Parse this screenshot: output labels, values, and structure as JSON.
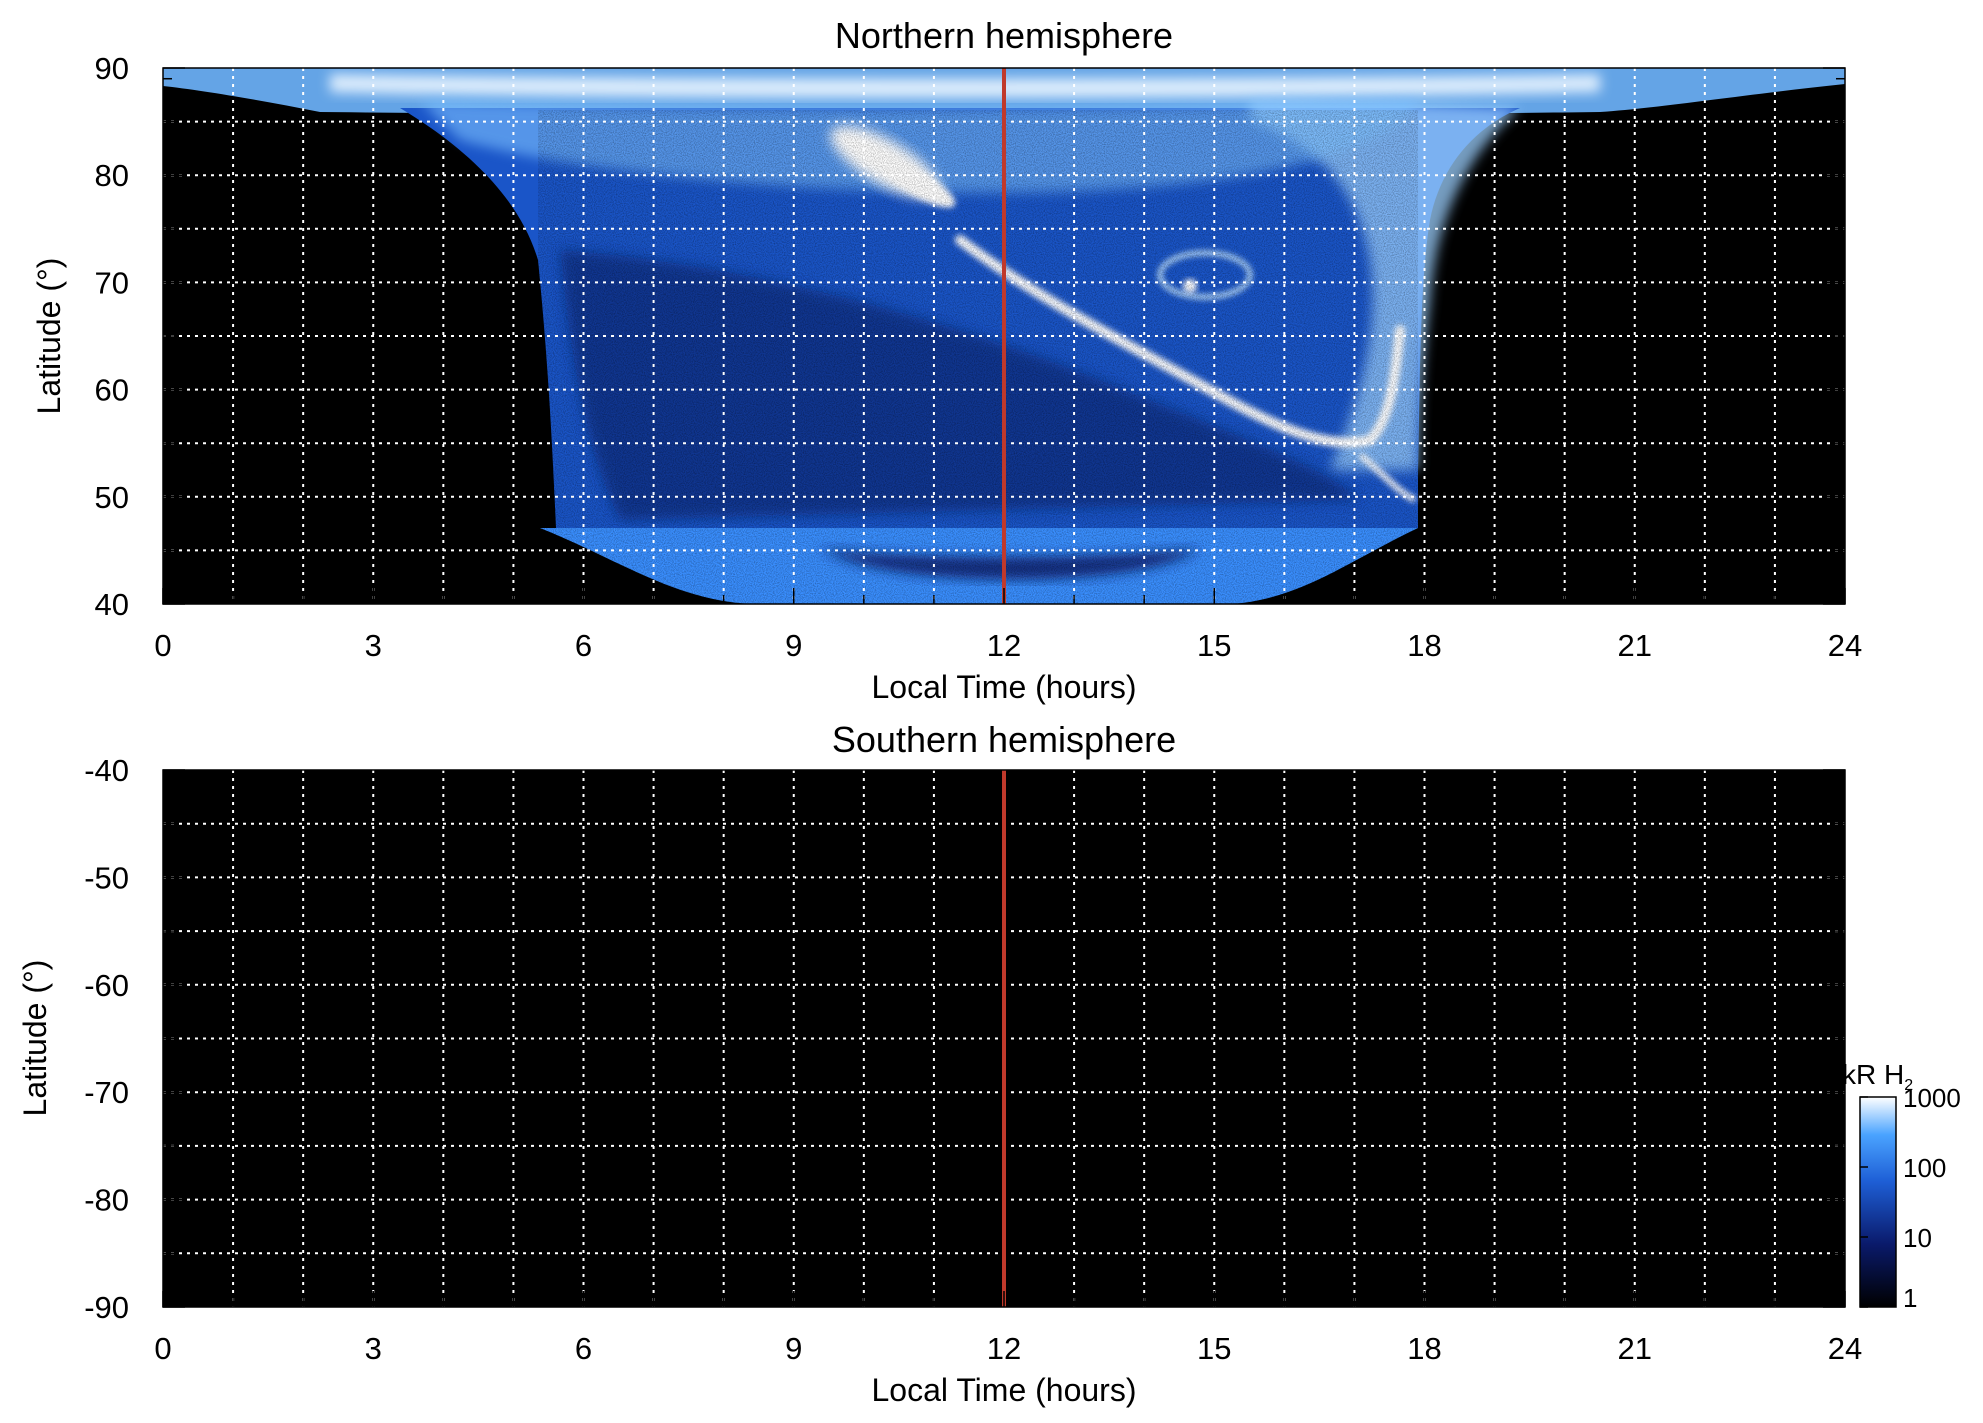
{
  "chart_data": [
    {
      "type": "heatmap",
      "title": "Northern hemisphere",
      "xlabel": "Local Time (hours)",
      "ylabel": "Latitude (°)",
      "xlim": [
        0,
        24
      ],
      "ylim": [
        40,
        90
      ],
      "x_ticks": [
        "0",
        "3",
        "6",
        "9",
        "12",
        "15",
        "18",
        "21",
        "24"
      ],
      "y_ticks": [
        "40",
        "50",
        "60",
        "70",
        "80",
        "90"
      ],
      "grid": true,
      "marker_line": {
        "x": 12,
        "color": "#c0392b"
      },
      "features": [
        {
          "name": "polar cap emission",
          "lt_range": [
            0,
            24
          ],
          "lat_range": [
            86,
            90
          ],
          "intensity_kR": 500
        },
        {
          "name": "observed region (dayside)",
          "lt_range": [
            5.5,
            18
          ],
          "lat_range": [
            40,
            86
          ],
          "intensity_kR": 40
        },
        {
          "name": "bright patch",
          "lt": 11,
          "lat": 78,
          "intensity_kR": 1000
        },
        {
          "name": "dusk oval arc",
          "lt_range": [
            12,
            17.5
          ],
          "lat_range": [
            54,
            73
          ],
          "intensity_kR": 800
        },
        {
          "name": "dusk loop",
          "lt": 14.7,
          "lat": 70,
          "intensity_kR": 300
        }
      ]
    },
    {
      "type": "heatmap",
      "title": "Southern hemisphere",
      "xlabel": "Local Time (hours)",
      "ylabel": "Latitude (°)",
      "xlim": [
        0,
        24
      ],
      "ylim": [
        -90,
        -40
      ],
      "x_ticks": [
        "0",
        "3",
        "6",
        "9",
        "12",
        "15",
        "18",
        "21",
        "24"
      ],
      "y_ticks": [
        "-40",
        "-50",
        "-60",
        "-70",
        "-80",
        "-90"
      ],
      "grid": true,
      "marker_line": {
        "x": 12,
        "color": "#c0392b"
      },
      "features": []
    }
  ],
  "colorbar": {
    "label_main": "kR H",
    "label_sub": "2",
    "scale": "log",
    "range": [
      1,
      1000
    ],
    "ticks": [
      "1000",
      "100",
      "10",
      "1"
    ],
    "colors": [
      "#000000",
      "#0a1a6b",
      "#1e5fd6",
      "#4aa3ff",
      "#ffffff"
    ]
  }
}
